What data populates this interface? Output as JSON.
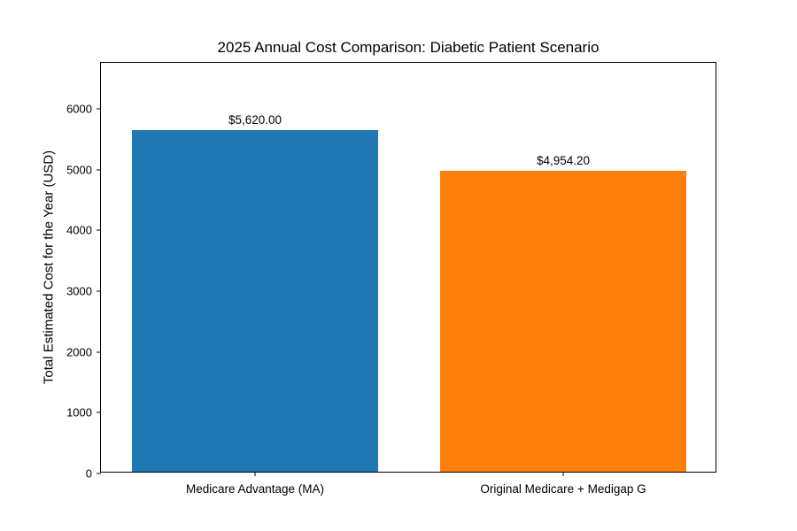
{
  "chart_data": {
    "type": "bar",
    "title": "2025 Annual Cost Comparison: Diabetic Patient Scenario",
    "xlabel": "",
    "ylabel": "Total Estimated Cost for the Year (USD)",
    "categories": [
      "Medicare Advantage (MA)",
      "Original Medicare + Medigap G"
    ],
    "values": [
      5620.0,
      4954.2
    ],
    "bar_value_labels": [
      "$5,620.00",
      "$4,954.20"
    ],
    "bar_colors": [
      "#1f77b4",
      "#ff7f0e"
    ],
    "yticks": [
      0,
      1000,
      2000,
      3000,
      4000,
      5000,
      6000
    ],
    "ylim": [
      0,
      6760
    ],
    "grid": false,
    "legend_position": "none",
    "background_color": "#ffffff",
    "axis_color": "#000000"
  }
}
